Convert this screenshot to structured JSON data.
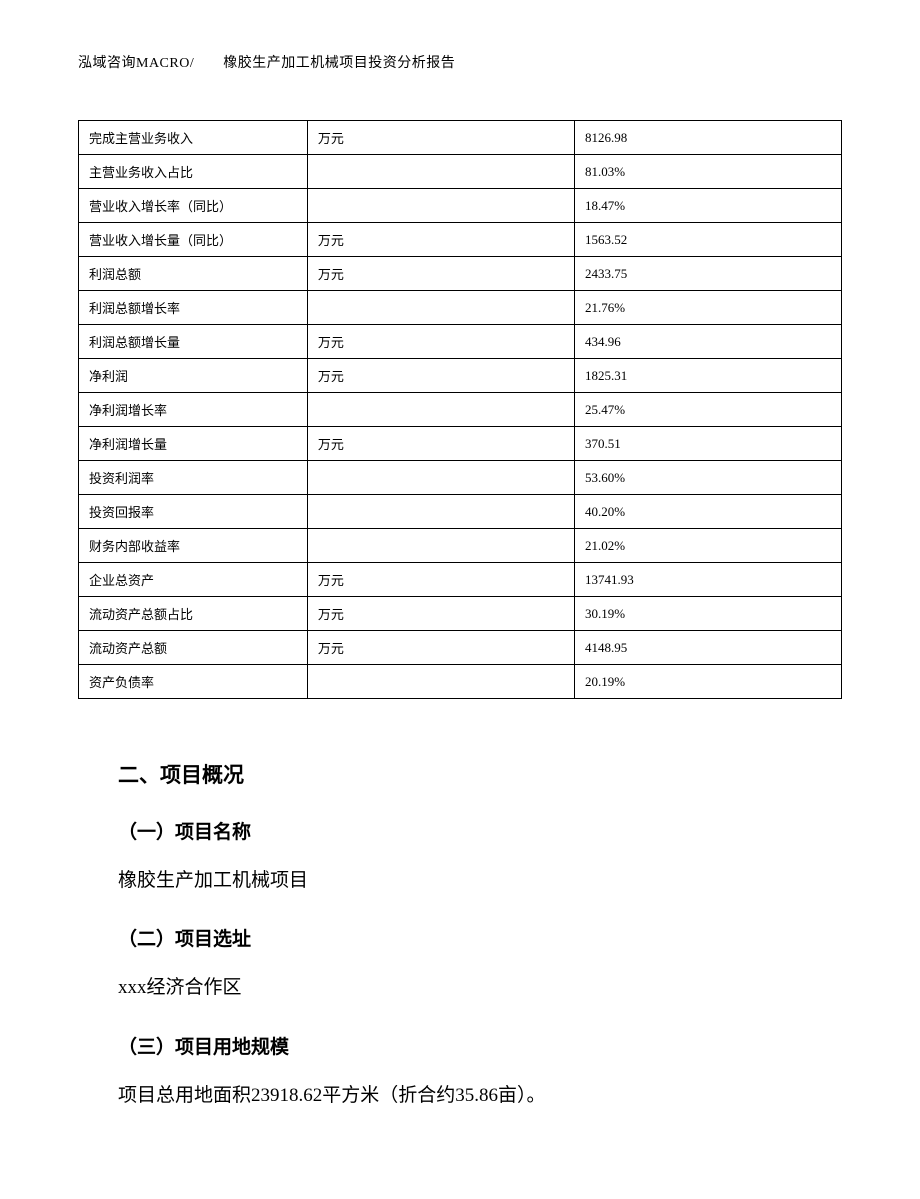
{
  "header": {
    "text": "泓域咨询MACRO/　　橡胶生产加工机械项目投资分析报告"
  },
  "table": {
    "rows": [
      {
        "label": "完成主营业务收入",
        "unit": "万元",
        "value": "8126.98"
      },
      {
        "label": "主营业务收入占比",
        "unit": "",
        "value": "81.03%"
      },
      {
        "label": "营业收入增长率（同比）",
        "unit": "",
        "value": "18.47%"
      },
      {
        "label": "营业收入增长量（同比）",
        "unit": "万元",
        "value": "1563.52"
      },
      {
        "label": "利润总额",
        "unit": "万元",
        "value": "2433.75"
      },
      {
        "label": "利润总额增长率",
        "unit": "",
        "value": "21.76%"
      },
      {
        "label": "利润总额增长量",
        "unit": "万元",
        "value": "434.96"
      },
      {
        "label": "净利润",
        "unit": "万元",
        "value": "1825.31"
      },
      {
        "label": "净利润增长率",
        "unit": "",
        "value": "25.47%"
      },
      {
        "label": "净利润增长量",
        "unit": "万元",
        "value": "370.51"
      },
      {
        "label": "投资利润率",
        "unit": "",
        "value": "53.60%"
      },
      {
        "label": "投资回报率",
        "unit": "",
        "value": "40.20%"
      },
      {
        "label": "财务内部收益率",
        "unit": "",
        "value": "21.02%"
      },
      {
        "label": "企业总资产",
        "unit": "万元",
        "value": "13741.93"
      },
      {
        "label": "流动资产总额占比",
        "unit": "万元",
        "value": "30.19%"
      },
      {
        "label": "流动资产总额",
        "unit": "万元",
        "value": "4148.95"
      },
      {
        "label": "资产负债率",
        "unit": "",
        "value": "20.19%"
      }
    ]
  },
  "sections": {
    "main_heading": "二、项目概况",
    "sub1_heading": "（一）项目名称",
    "sub1_text": "橡胶生产加工机械项目",
    "sub2_heading": "（二）项目选址",
    "sub2_text": "xxx经济合作区",
    "sub3_heading": "（三）项目用地规模",
    "sub3_text": "项目总用地面积23918.62平方米（折合约35.86亩）。"
  }
}
